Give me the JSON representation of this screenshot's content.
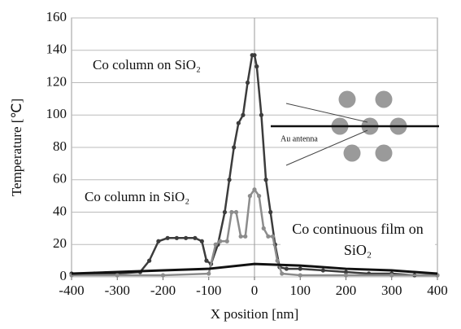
{
  "chart_data": {
    "type": "line",
    "x_label": "X position [nm]",
    "y_label": "Temperature [℃]",
    "xlim": [
      -400,
      400
    ],
    "xticks": [
      -400,
      -300,
      -200,
      -100,
      0,
      100,
      200,
      300,
      400
    ],
    "ylim": [
      0,
      160
    ],
    "yticks": [
      0,
      20,
      40,
      60,
      80,
      100,
      120,
      140,
      160
    ],
    "grid": true,
    "annotations": [
      "Au antenna"
    ],
    "series": [
      {
        "name": "Co column on SiO₂",
        "color": "#3c3c3c",
        "markers": true,
        "x": [
          -400,
          -350,
          -300,
          -250,
          -230,
          -210,
          -190,
          -170,
          -150,
          -130,
          -115,
          -105,
          -95,
          -80,
          -65,
          -55,
          -45,
          -35,
          -25,
          -15,
          -5,
          0,
          5,
          15,
          25,
          35,
          45,
          55,
          70,
          100,
          150,
          200,
          250,
          300,
          350,
          400
        ],
        "values": [
          2,
          2,
          2,
          3,
          10,
          22,
          24,
          24,
          24,
          24,
          22,
          10,
          8,
          20,
          40,
          60,
          80,
          95,
          100,
          120,
          137,
          137,
          130,
          100,
          60,
          40,
          20,
          6,
          5,
          5,
          4,
          3,
          2,
          2,
          1,
          1
        ]
      },
      {
        "name": "Co column in SiO₂",
        "color": "#8c8c8c",
        "markers": true,
        "x": [
          -400,
          -300,
          -200,
          -100,
          -85,
          -75,
          -60,
          -50,
          -40,
          -30,
          -20,
          -10,
          0,
          10,
          20,
          30,
          40,
          50,
          60,
          100,
          200,
          300,
          400
        ],
        "values": [
          1,
          1,
          1,
          2,
          20,
          22,
          22,
          40,
          40,
          25,
          25,
          50,
          54,
          50,
          30,
          25,
          25,
          10,
          2,
          1,
          1,
          1,
          1
        ]
      },
      {
        "name": "Co continuous film on SiO₂",
        "color": "#111111",
        "markers": false,
        "x": [
          -400,
          -300,
          -200,
          -100,
          0,
          100,
          200,
          300,
          400
        ],
        "values": [
          2,
          3,
          4,
          5,
          8,
          7,
          5,
          4,
          2
        ]
      }
    ]
  }
}
